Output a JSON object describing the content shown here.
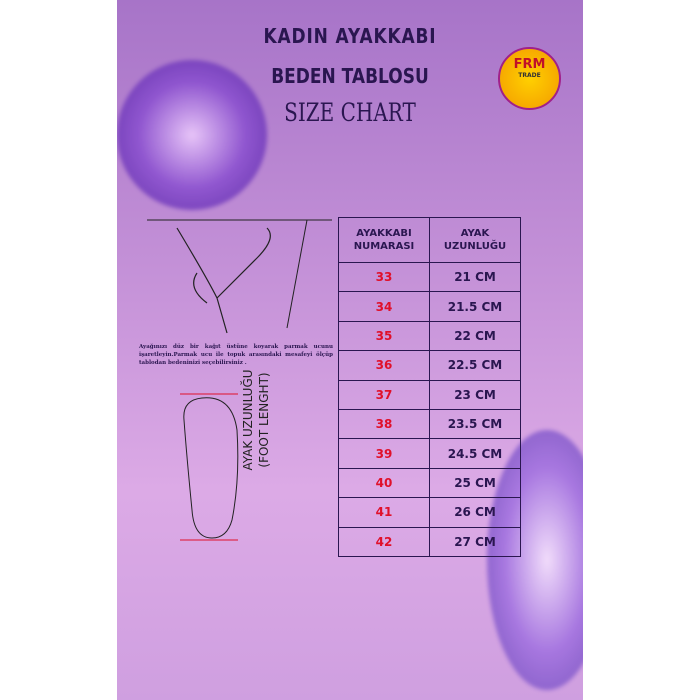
{
  "title_line1": "KADIN AYAKKABI",
  "title_line2": "BEDEN TABLOSU",
  "title_line3": "SIZE CHART",
  "logo": {
    "text": "FRM",
    "sub": "TRADE"
  },
  "table": {
    "headers": [
      "AYAKKABI NUMARASI",
      "AYAK UZUNLUĞU"
    ],
    "rows": [
      [
        "33",
        "21 CM"
      ],
      [
        "34",
        "21.5 CM"
      ],
      [
        "35",
        "22 CM"
      ],
      [
        "36",
        "22.5 CM"
      ],
      [
        "37",
        "23 CM"
      ],
      [
        "38",
        "23.5 CM"
      ],
      [
        "39",
        "24.5 CM"
      ],
      [
        "40",
        "25 CM"
      ],
      [
        "41",
        "26 CM"
      ],
      [
        "42",
        "27 CM"
      ]
    ]
  },
  "instruction": "Ayağınızı düz bir kağıt üstüne koyarak parmak ucunu işaretleyin.Parmak ucu ile topuk arasındaki mesafeyi ölçüp tablodan bedeninizi seçebilirsiniz .",
  "foot_label_1": "AYAK UZUNLUĞU",
  "foot_label_2": "(FOOT LENGHT)",
  "colors": {
    "background": "#c592d8",
    "text": "#2a1650",
    "size_number": "#e0102a"
  }
}
